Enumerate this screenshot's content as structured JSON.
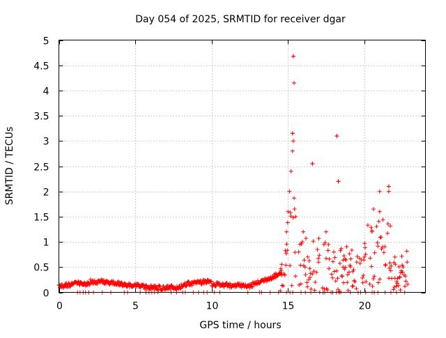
{
  "chart_data": {
    "type": "scatter",
    "title": "Day 054 of 2025, SRMTID for receiver dgar",
    "xlabel": "GPS time / hours",
    "ylabel": "SRMTID / TECUs",
    "xlim": [
      0,
      24
    ],
    "ylim": [
      0,
      5
    ],
    "xticks": [
      0,
      5,
      10,
      15,
      20
    ],
    "xtick_labels": [
      "0",
      "5",
      "10",
      "15",
      "20"
    ],
    "yticks": [
      0,
      0.5,
      1,
      1.5,
      2,
      2.5,
      3,
      3.5,
      4,
      4.5,
      5
    ],
    "ytick_labels": [
      "0",
      "0.5",
      "1",
      "1.5",
      "2",
      "2.5",
      "3",
      "3.5",
      "4",
      "4.5",
      "5"
    ],
    "grid": true,
    "marker": "+",
    "marker_color": "#ff0000",
    "series": [
      {
        "name": "SRMTID",
        "description_points": [
          [
            0.0,
            0.1
          ],
          [
            0.2,
            0.14
          ],
          [
            0.5,
            0.13
          ],
          [
            0.8,
            0.17
          ],
          [
            1.0,
            0.2
          ],
          [
            1.2,
            0.22
          ],
          [
            1.4,
            0.28
          ],
          [
            1.6,
            0.18
          ],
          [
            2.0,
            0.12
          ],
          [
            2.5,
            0.14
          ],
          [
            3.0,
            0.16
          ],
          [
            3.5,
            0.13
          ],
          [
            4.0,
            0.15
          ],
          [
            4.5,
            0.18
          ],
          [
            5.0,
            0.2
          ],
          [
            5.5,
            0.19
          ],
          [
            6.0,
            0.18
          ],
          [
            6.5,
            0.17
          ],
          [
            7.0,
            0.16
          ],
          [
            7.5,
            0.19
          ],
          [
            8.0,
            0.18
          ],
          [
            8.5,
            0.2
          ],
          [
            9.0,
            0.22
          ],
          [
            9.5,
            0.23
          ],
          [
            10.0,
            0.21
          ],
          [
            10.5,
            0.17
          ],
          [
            11.0,
            0.13
          ],
          [
            11.5,
            0.12
          ],
          [
            12.0,
            0.14
          ],
          [
            12.5,
            0.18
          ],
          [
            13.0,
            0.25
          ],
          [
            13.5,
            0.3
          ],
          [
            14.0,
            0.35
          ],
          [
            14.3,
            0.4
          ],
          [
            14.5,
            0.5
          ],
          [
            14.7,
            0.8
          ],
          [
            14.9,
            1.2
          ],
          [
            15.0,
            1.6
          ],
          [
            15.1,
            2.0
          ],
          [
            15.2,
            2.4
          ],
          [
            15.3,
            3.15
          ],
          [
            15.35,
            4.68
          ],
          [
            15.4,
            4.15
          ],
          [
            15.5,
            1.5
          ],
          [
            15.7,
            0.8
          ],
          [
            16.0,
            1.2
          ],
          [
            16.3,
            0.7
          ],
          [
            16.6,
            2.55
          ],
          [
            17.0,
            0.6
          ],
          [
            17.5,
            1.2
          ],
          [
            18.0,
            0.8
          ],
          [
            18.2,
            3.1
          ],
          [
            18.3,
            2.2
          ],
          [
            18.6,
            0.5
          ],
          [
            19.0,
            0.4
          ],
          [
            19.5,
            0.6
          ],
          [
            20.0,
            0.7
          ],
          [
            20.5,
            1.2
          ],
          [
            21.0,
            1.6
          ],
          [
            21.2,
            0.9
          ],
          [
            21.6,
            2.1
          ],
          [
            22.0,
            0.7
          ],
          [
            22.5,
            0.4
          ],
          [
            22.8,
            0.6
          ]
        ]
      }
    ]
  }
}
